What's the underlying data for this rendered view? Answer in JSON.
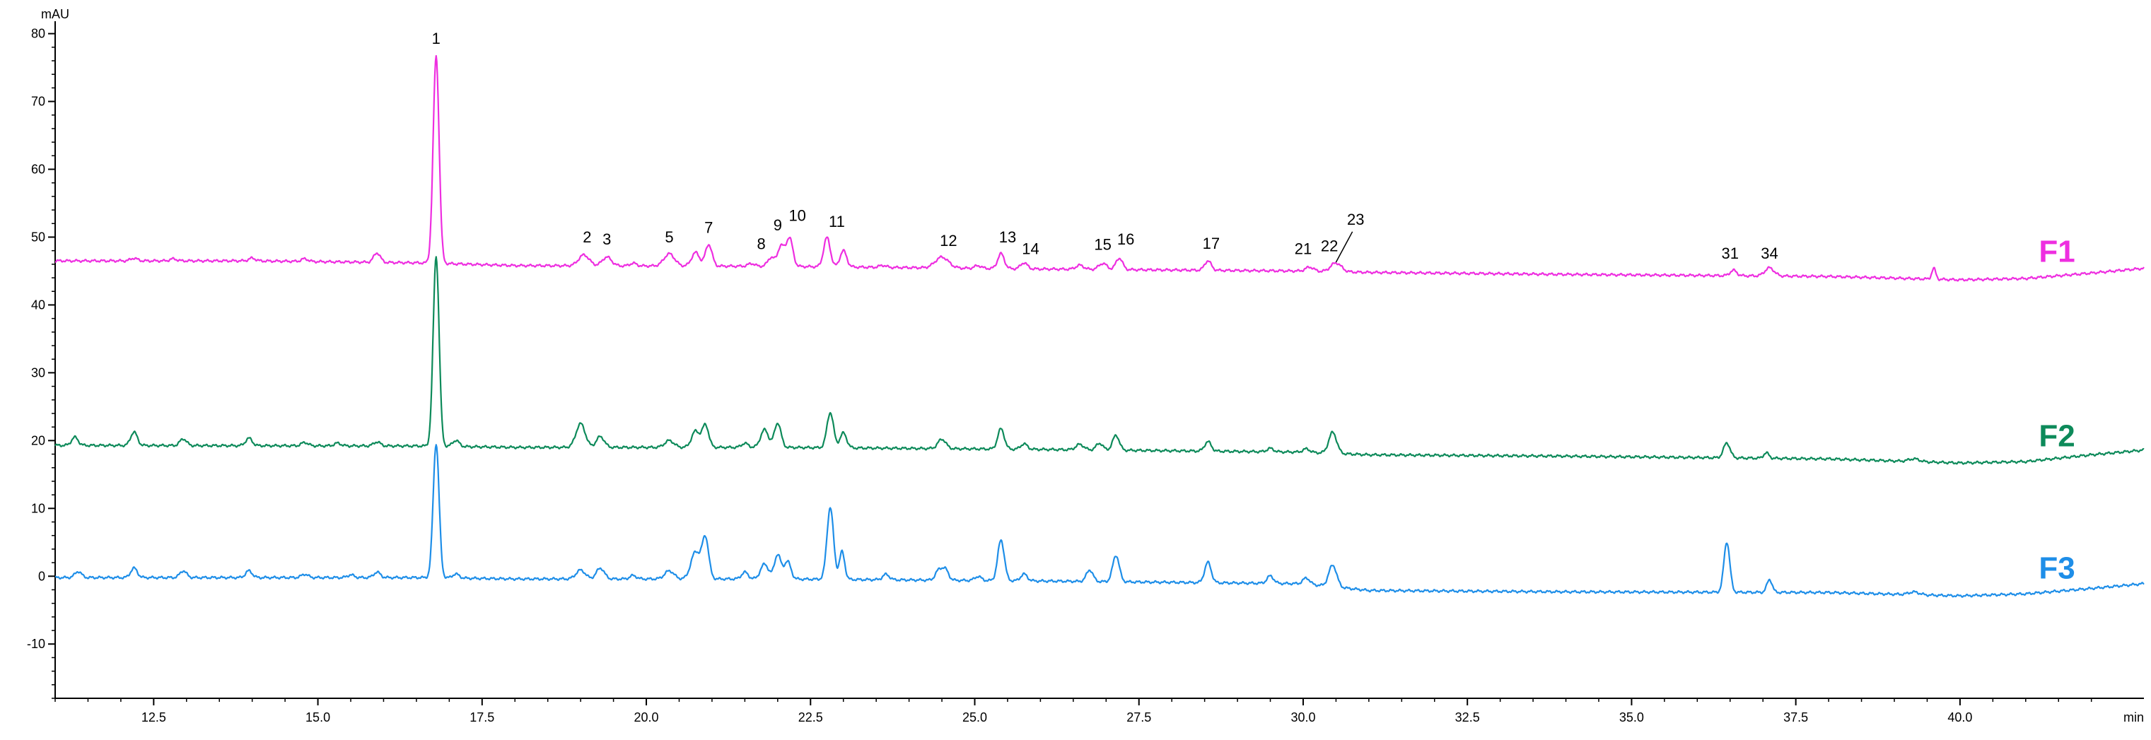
{
  "chart_data": {
    "type": "line",
    "title": "",
    "xlabel": "min",
    "ylabel": "mAU",
    "xlim": [
      11,
      42.8
    ],
    "ylim": [
      -18,
      81
    ],
    "x_ticks": [
      12.5,
      15.0,
      17.5,
      20.0,
      22.5,
      25.0,
      27.5,
      30.0,
      32.5,
      35.0,
      37.5,
      40.0
    ],
    "x_tick_labels": [
      "12.5",
      "15.0",
      "17.5",
      "20.0",
      "22.5",
      "25.0",
      "27.5",
      "30.0",
      "32.5",
      "35.0",
      "37.5",
      "40.0"
    ],
    "y_ticks": [
      -10,
      0,
      10,
      20,
      30,
      40,
      50,
      60,
      70,
      80
    ],
    "y_tick_labels": [
      "-10",
      "0",
      "10",
      "20",
      "30",
      "40",
      "50",
      "60",
      "70",
      "80"
    ],
    "grid": false,
    "legend": "none",
    "series": [
      {
        "name": "F1",
        "color": "#ee2ee0",
        "label_pos": [
          41.2,
          47.8
        ],
        "baseline": [
          [
            11,
            46.5
          ],
          [
            14,
            46.5
          ],
          [
            16.6,
            46.2
          ],
          [
            18,
            45.8
          ],
          [
            22,
            45.7
          ],
          [
            26,
            45.3
          ],
          [
            30,
            45.0
          ],
          [
            31,
            44.8
          ],
          [
            34,
            44.5
          ],
          [
            38,
            44.2
          ],
          [
            40,
            43.7
          ],
          [
            41,
            43.9
          ],
          [
            42,
            44.7
          ],
          [
            42.8,
            45.4
          ]
        ],
        "peaks": [
          [
            12.2,
            0.4,
            0.05
          ],
          [
            12.8,
            0.3,
            0.05
          ],
          [
            14.0,
            0.4,
            0.05
          ],
          [
            14.8,
            0.4,
            0.05
          ],
          [
            15.9,
            1.4,
            0.05
          ],
          [
            16.8,
            30.5,
            0.045
          ],
          [
            19.05,
            1.6,
            0.08
          ],
          [
            19.4,
            1.3,
            0.07
          ],
          [
            19.8,
            0.4,
            0.05
          ],
          [
            20.35,
            1.8,
            0.08
          ],
          [
            20.75,
            2.0,
            0.06
          ],
          [
            20.95,
            3.2,
            0.05
          ],
          [
            21.6,
            0.4,
            0.05
          ],
          [
            21.9,
            1.3,
            0.05
          ],
          [
            22.05,
            3.0,
            0.05
          ],
          [
            22.18,
            4.2,
            0.05
          ],
          [
            22.75,
            4.3,
            0.05
          ],
          [
            23.0,
            2.4,
            0.05
          ],
          [
            23.6,
            0.3,
            0.05
          ],
          [
            24.5,
            1.6,
            0.1
          ],
          [
            25.05,
            0.4,
            0.05
          ],
          [
            25.4,
            2.2,
            0.05
          ],
          [
            25.75,
            0.9,
            0.05
          ],
          [
            26.6,
            0.6,
            0.06
          ],
          [
            26.95,
            0.9,
            0.06
          ],
          [
            27.2,
            1.7,
            0.05
          ],
          [
            28.55,
            1.4,
            0.05
          ],
          [
            30.1,
            0.6,
            0.06
          ],
          [
            30.5,
            1.3,
            0.08
          ],
          [
            36.55,
            0.8,
            0.05
          ],
          [
            37.1,
            1.2,
            0.07
          ],
          [
            39.6,
            1.6,
            0.03
          ]
        ]
      },
      {
        "name": "F2",
        "color": "#0d8a5a",
        "label_pos": [
          41.2,
          20.6
        ],
        "baseline": [
          [
            11,
            19.3
          ],
          [
            16.6,
            19.2
          ],
          [
            18,
            19.0
          ],
          [
            22,
            19.0
          ],
          [
            26,
            18.7
          ],
          [
            30,
            18.3
          ],
          [
            31,
            17.9
          ],
          [
            34,
            17.7
          ],
          [
            38,
            17.3
          ],
          [
            40,
            16.7
          ],
          [
            41,
            16.9
          ],
          [
            42,
            17.9
          ],
          [
            42.8,
            18.6
          ]
        ],
        "peaks": [
          [
            11.3,
            1.2,
            0.05
          ],
          [
            12.2,
            2.0,
            0.05
          ],
          [
            12.95,
            1.0,
            0.05
          ],
          [
            13.95,
            1.1,
            0.05
          ],
          [
            14.8,
            0.5,
            0.05
          ],
          [
            15.3,
            0.4,
            0.05
          ],
          [
            15.9,
            0.6,
            0.05
          ],
          [
            16.8,
            28.0,
            0.045
          ],
          [
            17.1,
            0.9,
            0.05
          ],
          [
            19.0,
            3.5,
            0.07
          ],
          [
            19.3,
            1.6,
            0.06
          ],
          [
            20.35,
            1.0,
            0.07
          ],
          [
            20.75,
            2.4,
            0.06
          ],
          [
            20.9,
            3.3,
            0.05
          ],
          [
            21.5,
            0.6,
            0.05
          ],
          [
            21.8,
            2.6,
            0.06
          ],
          [
            22.0,
            3.6,
            0.05
          ],
          [
            22.8,
            5.2,
            0.05
          ],
          [
            23.0,
            2.2,
            0.05
          ],
          [
            24.5,
            1.4,
            0.06
          ],
          [
            25.4,
            3.0,
            0.05
          ],
          [
            25.75,
            0.8,
            0.05
          ],
          [
            26.6,
            0.8,
            0.06
          ],
          [
            26.9,
            1.0,
            0.05
          ],
          [
            27.15,
            2.2,
            0.05
          ],
          [
            28.55,
            1.4,
            0.05
          ],
          [
            29.5,
            0.5,
            0.05
          ],
          [
            30.05,
            0.5,
            0.05
          ],
          [
            30.45,
            3.1,
            0.06
          ],
          [
            36.45,
            2.2,
            0.05
          ],
          [
            37.05,
            0.8,
            0.04
          ],
          [
            39.3,
            0.4,
            0.08
          ]
        ]
      },
      {
        "name": "F3",
        "color": "#1e8ee8",
        "label_pos": [
          41.2,
          1.1
        ],
        "baseline": [
          [
            11,
            -0.2
          ],
          [
            16.6,
            -0.2
          ],
          [
            18,
            -0.4
          ],
          [
            22,
            -0.4
          ],
          [
            26,
            -0.7
          ],
          [
            30,
            -1.1
          ],
          [
            31,
            -2.1
          ],
          [
            34,
            -2.3
          ],
          [
            38,
            -2.4
          ],
          [
            40,
            -2.9
          ],
          [
            41,
            -2.6
          ],
          [
            42,
            -1.8
          ],
          [
            42.8,
            -1.1
          ]
        ],
        "peaks": [
          [
            11.35,
            0.9,
            0.05
          ],
          [
            12.2,
            1.4,
            0.05
          ],
          [
            12.95,
            1.0,
            0.05
          ],
          [
            13.95,
            1.0,
            0.05
          ],
          [
            14.8,
            0.5,
            0.05
          ],
          [
            15.5,
            0.4,
            0.05
          ],
          [
            15.9,
            0.8,
            0.05
          ],
          [
            16.8,
            19.8,
            0.045
          ],
          [
            17.1,
            0.6,
            0.05
          ],
          [
            19.0,
            1.3,
            0.07
          ],
          [
            19.3,
            1.6,
            0.06
          ],
          [
            19.8,
            0.5,
            0.05
          ],
          [
            20.35,
            1.2,
            0.07
          ],
          [
            20.75,
            4.0,
            0.07
          ],
          [
            20.9,
            6.0,
            0.05
          ],
          [
            21.5,
            1.0,
            0.05
          ],
          [
            21.8,
            2.2,
            0.06
          ],
          [
            22.0,
            3.6,
            0.05
          ],
          [
            22.15,
            2.6,
            0.05
          ],
          [
            22.8,
            10.6,
            0.05
          ],
          [
            22.98,
            4.1,
            0.04
          ],
          [
            23.65,
            0.8,
            0.05
          ],
          [
            24.45,
            1.4,
            0.05
          ],
          [
            24.55,
            1.6,
            0.05
          ],
          [
            25.05,
            0.6,
            0.05
          ],
          [
            25.4,
            6.0,
            0.05
          ],
          [
            25.75,
            1.0,
            0.05
          ],
          [
            26.75,
            1.7,
            0.05
          ],
          [
            27.15,
            3.9,
            0.05
          ],
          [
            28.55,
            3.0,
            0.05
          ],
          [
            29.5,
            1.1,
            0.05
          ],
          [
            30.05,
            0.9,
            0.05
          ],
          [
            30.45,
            3.2,
            0.06
          ],
          [
            36.45,
            7.4,
            0.045
          ],
          [
            37.1,
            1.9,
            0.04
          ],
          [
            39.3,
            0.4,
            0.08
          ]
        ]
      }
    ],
    "peak_labels": [
      {
        "text": "1",
        "x": 16.8,
        "y": 78.5
      },
      {
        "text": "2",
        "x": 19.1,
        "y": 49.2
      },
      {
        "text": "3",
        "x": 19.4,
        "y": 48.9
      },
      {
        "text": "5",
        "x": 20.35,
        "y": 49.2
      },
      {
        "text": "7",
        "x": 20.95,
        "y": 50.6
      },
      {
        "text": "8",
        "x": 21.75,
        "y": 48.2
      },
      {
        "text": "9",
        "x": 22.0,
        "y": 51.0
      },
      {
        "text": "10",
        "x": 22.3,
        "y": 52.4
      },
      {
        "text": "11",
        "x": 22.9,
        "y": 51.5
      },
      {
        "text": "12",
        "x": 24.6,
        "y": 48.7
      },
      {
        "text": "13",
        "x": 25.5,
        "y": 49.2
      },
      {
        "text": "14",
        "x": 25.85,
        "y": 47.5
      },
      {
        "text": "15",
        "x": 26.95,
        "y": 48.1
      },
      {
        "text": "16",
        "x": 27.3,
        "y": 48.9
      },
      {
        "text": "17",
        "x": 28.6,
        "y": 48.3
      },
      {
        "text": "21",
        "x": 30.0,
        "y": 47.5
      },
      {
        "text": "22",
        "x": 30.4,
        "y": 47.9
      },
      {
        "text": "23",
        "x": 30.8,
        "y": 51.8
      },
      {
        "text": "31",
        "x": 36.5,
        "y": 46.8
      },
      {
        "text": "34",
        "x": 37.1,
        "y": 46.8
      }
    ]
  }
}
